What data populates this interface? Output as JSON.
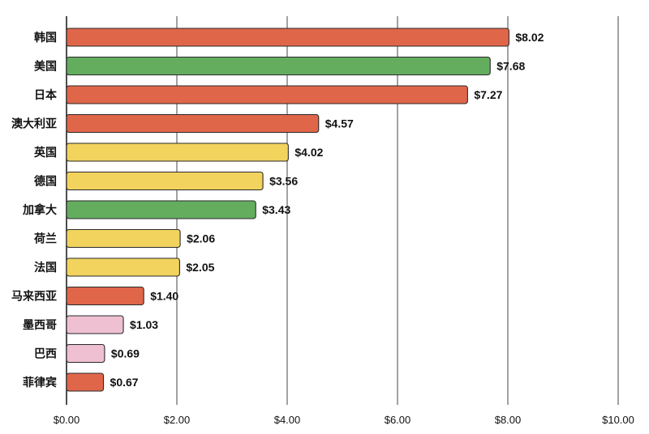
{
  "chart_data": {
    "type": "bar",
    "orientation": "horizontal",
    "categories": [
      "韩国",
      "美国",
      "日本",
      "澳大利亚",
      "英国",
      "德国",
      "加拿大",
      "荷兰",
      "法国",
      "马来西亚",
      "墨西哥",
      "巴西",
      "菲律宾"
    ],
    "values": [
      8.02,
      7.68,
      7.27,
      4.57,
      4.02,
      3.56,
      3.43,
      2.06,
      2.05,
      1.4,
      1.03,
      0.69,
      0.67
    ],
    "value_labels": [
      "$8.02",
      "$7.68",
      "$7.27",
      "$4.57",
      "$4.02",
      "$3.56",
      "$3.43",
      "$2.06",
      "$2.05",
      "$1.40",
      "$1.03",
      "$0.69",
      "$0.67"
    ],
    "bar_colors": [
      "#e0664a",
      "#64ad5f",
      "#e0664a",
      "#e0664a",
      "#f2d35e",
      "#f2d35e",
      "#64ad5f",
      "#f2d35e",
      "#f2d35e",
      "#e0664a",
      "#efc0d2",
      "#efc0d2",
      "#e0664a"
    ],
    "xlim": [
      0,
      10
    ],
    "xticks": [
      0,
      2,
      4,
      6,
      8,
      10
    ],
    "xtick_labels": [
      "$0.00",
      "$2.00",
      "$4.00",
      "$6.00",
      "$8.00",
      "$10.00"
    ],
    "grid": "vertical",
    "title": "",
    "xlabel": "",
    "ylabel": ""
  }
}
